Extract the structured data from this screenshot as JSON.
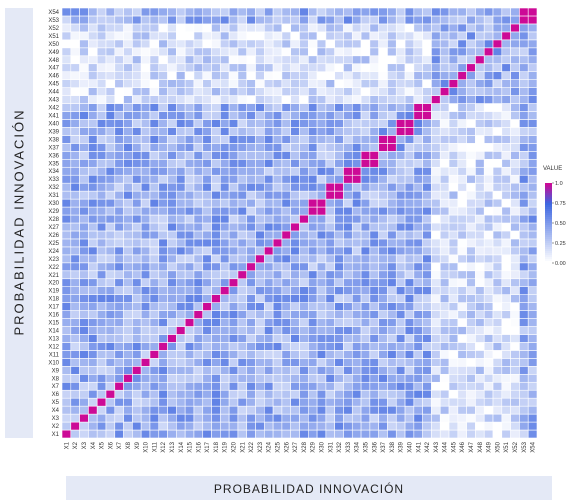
{
  "chart_data": {
    "type": "heatmap",
    "title": "",
    "xlabel": "PROBABILIDAD INNOVACIÓN",
    "ylabel": "PROBABILIDAD INNOVACIÓN",
    "variables": [
      "X1",
      "X2",
      "X3",
      "X4",
      "X5",
      "X6",
      "X7",
      "X8",
      "X9",
      "X10",
      "X11",
      "X12",
      "X13",
      "X14",
      "X15",
      "X16",
      "X17",
      "X18",
      "X19",
      "X20",
      "X21",
      "X22",
      "X23",
      "X24",
      "X25",
      "X26",
      "X27",
      "X28",
      "X29",
      "X30",
      "X31",
      "X32",
      "X33",
      "X34",
      "X35",
      "X36",
      "X37",
      "X38",
      "X39",
      "X40",
      "X41",
      "X42",
      "X43",
      "X44",
      "X45",
      "X46",
      "X47",
      "X48",
      "X49",
      "X50",
      "X51",
      "X52",
      "X53",
      "X54"
    ],
    "diagonal_value": 1.0,
    "value_range": [
      0,
      1
    ],
    "legend": {
      "title": "VALUE",
      "ticks": [
        "1.0",
        "0.75",
        "0.50",
        "0.25",
        "0.00"
      ],
      "placement": "right"
    },
    "colors": {
      "low": "#ffffff",
      "mid": "#3d66e0",
      "high": "#cc0a96",
      "grid": "#ffffff"
    },
    "block_groups": [
      [
        "X29",
        "X30"
      ],
      [
        "X31",
        "X32"
      ],
      [
        "X33",
        "X34"
      ],
      [
        "X35",
        "X36"
      ],
      [
        "X37",
        "X38"
      ],
      [
        "X39",
        "X40"
      ],
      [
        "X41",
        "X42"
      ],
      [
        "X53",
        "X54"
      ]
    ],
    "pattern": {
      "typical_offdiagonal": 0.4,
      "low_region_rows": [
        "X43",
        "X44",
        "X45",
        "X46",
        "X47",
        "X48",
        "X49",
        "X50",
        "X51",
        "X52"
      ],
      "low_region_cols": [
        "X1",
        "X2",
        "X3",
        "X4",
        "X5",
        "X6",
        "X7",
        "X8",
        "X9",
        "X10",
        "X11",
        "X12",
        "X13",
        "X14",
        "X15",
        "X16",
        "X17",
        "X18",
        "X19",
        "X20",
        "X21",
        "X22",
        "X23",
        "X24",
        "X25",
        "X26",
        "X27",
        "X28",
        "X29",
        "X30",
        "X31",
        "X32",
        "X33",
        "X34",
        "X35",
        "X36",
        "X37",
        "X38",
        "X39",
        "X40",
        "X41",
        "X42"
      ],
      "low_value": 0.15
    }
  }
}
